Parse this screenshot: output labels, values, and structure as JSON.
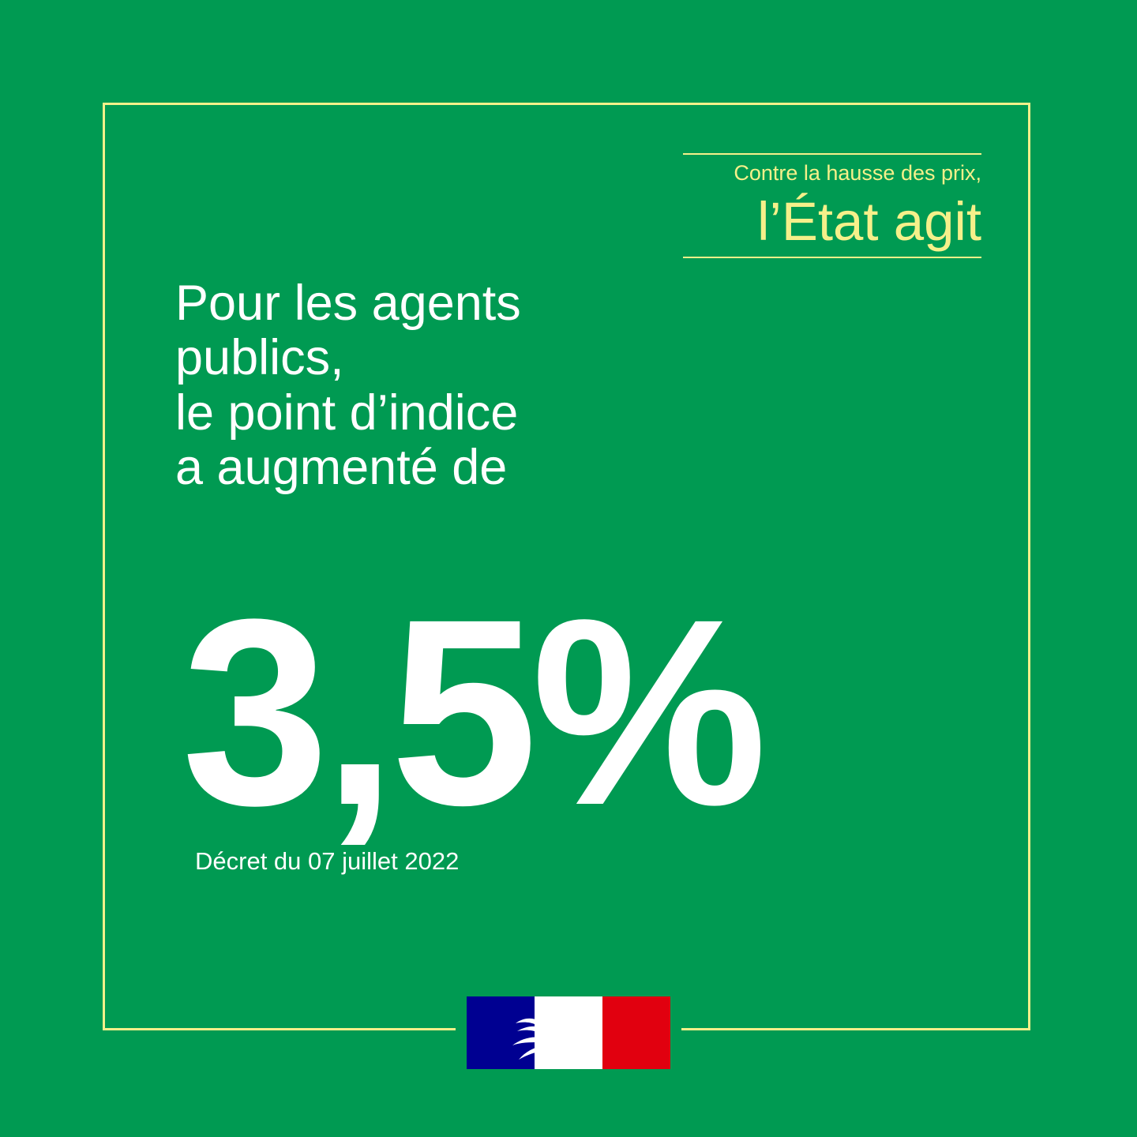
{
  "colors": {
    "background": "#009a52",
    "accent_yellow": "#f5f08a",
    "text": "#ffffff",
    "flag_blue": "#000091",
    "flag_red": "#e1000f"
  },
  "tagline": {
    "line1": "Contre la hausse des prix,",
    "line2": "l’État agit"
  },
  "headline": {
    "line1": "Pour les agents",
    "line2": "publics,",
    "line3": "le point d’indice",
    "line4": "a augmenté de"
  },
  "value": "3,5%",
  "footnote": "Décret du 07 juillet 2022",
  "logo": {
    "icon": "marianne-flag-icon"
  }
}
